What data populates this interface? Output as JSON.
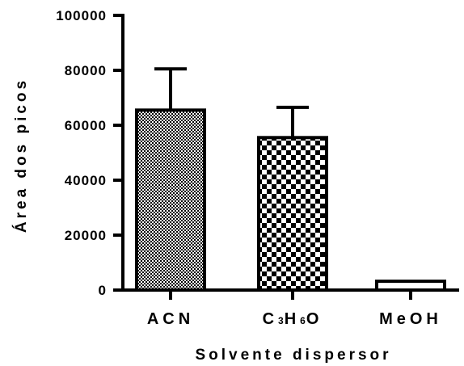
{
  "chart_data": {
    "type": "bar",
    "xlabel": "Solvente dispersor",
    "ylabel": "Área dos picos",
    "ylim": [
      0,
      100000
    ],
    "yticks": [
      {
        "value": 0,
        "label": "0"
      },
      {
        "value": 20000,
        "label": "20000"
      },
      {
        "value": 40000,
        "label": "40000"
      },
      {
        "value": 60000,
        "label": "60000"
      },
      {
        "value": 80000,
        "label": "80000"
      },
      {
        "value": 100000,
        "label": "100000"
      }
    ],
    "categories": [
      "ACN",
      "C3H6O",
      "MeOH"
    ],
    "category_labels": [
      [
        {
          "t": "ACN",
          "sub": false
        }
      ],
      [
        {
          "t": "C",
          "sub": false
        },
        {
          "t": "3",
          "sub": true
        },
        {
          "t": "H",
          "sub": false
        },
        {
          "t": "6",
          "sub": true
        },
        {
          "t": "O",
          "sub": false
        }
      ],
      [
        {
          "t": "MeOH",
          "sub": false
        }
      ]
    ],
    "values": [
      65500,
      55500,
      3200
    ],
    "errors": [
      15000,
      11000,
      0
    ],
    "fills": [
      "fine-checker",
      "coarse-checker",
      "white"
    ],
    "grid": false,
    "legend": "none"
  }
}
